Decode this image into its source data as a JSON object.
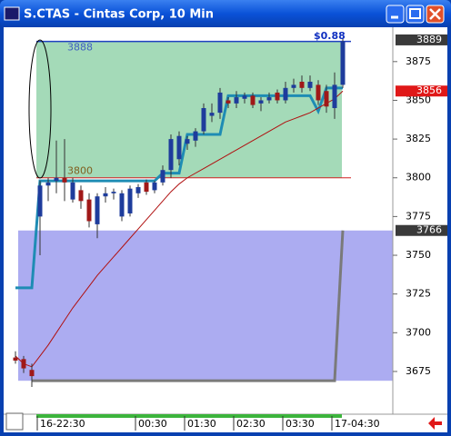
{
  "window_title": "S.CTAS - Cintas Corp, 10 Min",
  "chart_data": {
    "type": "candlestick",
    "categories": [
      null,
      null,
      null,
      "16-22:30",
      null,
      null,
      null,
      null,
      null,
      null,
      null,
      null,
      null,
      null,
      null,
      "00:30",
      null,
      null,
      null,
      null,
      null,
      "01:30",
      null,
      null,
      null,
      null,
      null,
      "02:30",
      null,
      null,
      null,
      null,
      null,
      "03:30",
      null,
      null,
      null,
      null,
      null,
      "17-04:30",
      null
    ],
    "open": [
      3684,
      3683,
      3676,
      3775,
      3795,
      3798,
      3800,
      3786,
      3792,
      3786,
      3770,
      3788,
      3790,
      3775,
      3777,
      3790,
      3797,
      3792,
      3797,
      3805,
      3812,
      3822,
      3824,
      3830,
      3840,
      3842,
      3850,
      3848,
      3851,
      3853,
      3848,
      3850,
      3855,
      3850,
      3858,
      3862,
      3858,
      3860,
      3856,
      3845,
      3860
    ],
    "high": [
      3688,
      3685,
      3680,
      3798,
      3800,
      3824,
      3825,
      3800,
      3795,
      3790,
      3790,
      3794,
      3793,
      3792,
      3795,
      3796,
      3799,
      3798,
      3808,
      3828,
      3830,
      3827,
      3832,
      3848,
      3848,
      3858,
      3852,
      3856,
      3855,
      3855,
      3852,
      3855,
      3857,
      3862,
      3864,
      3866,
      3866,
      3863,
      3860,
      3868,
      3890
    ],
    "low": [
      3680,
      3674,
      3665,
      3750,
      3785,
      3790,
      3785,
      3784,
      3780,
      3768,
      3761,
      3784,
      3786,
      3772,
      3775,
      3787,
      3789,
      3790,
      3795,
      3800,
      3808,
      3818,
      3820,
      3828,
      3836,
      3838,
      3845,
      3845,
      3848,
      3845,
      3843,
      3848,
      3848,
      3848,
      3855,
      3855,
      3856,
      3847,
      3842,
      3838,
      3858
    ],
    "close": [
      3682,
      3677,
      3672,
      3795,
      3797,
      3800,
      3797,
      3797,
      3785,
      3772,
      3788,
      3790,
      3791,
      3790,
      3793,
      3794,
      3791,
      3797,
      3805,
      3825,
      3827,
      3825,
      3830,
      3845,
      3842,
      3855,
      3848,
      3852,
      3853,
      3847,
      3850,
      3852,
      3850,
      3858,
      3860,
      3858,
      3862,
      3850,
      3846,
      3860,
      3888
    ],
    "up_color": "#1e3c9c",
    "down_color": "#a01818",
    "series": [
      {
        "color": "#1e8cb4",
        "values": [
          3729,
          3729,
          3729,
          3798,
          3798,
          3798,
          3798,
          3798,
          3798,
          3798,
          3798,
          3798,
          3798,
          3798,
          3798,
          3798,
          3798,
          3798,
          3803,
          3803,
          3803,
          3828,
          3828,
          3828,
          3828,
          3828,
          3853,
          3853,
          3853,
          3853,
          3853,
          3853,
          3853,
          3853,
          3853,
          3853,
          3853,
          3843,
          3858,
          3858,
          3858
        ]
      },
      {
        "color": "#b01010",
        "values": [
          3685,
          3680,
          3678,
          3685,
          3692,
          3700,
          3708,
          3716,
          3723,
          3730,
          3737,
          3743,
          3749,
          3755,
          3761,
          3767,
          3773,
          3779,
          3785,
          3791,
          3796,
          3800,
          3803,
          3806,
          3809,
          3812,
          3815,
          3818,
          3821,
          3824,
          3827,
          3830,
          3833,
          3836,
          3838,
          3840,
          3842,
          3845,
          3848,
          3851,
          3856
        ]
      },
      {
        "color": "#7a7a7a",
        "values": [
          null,
          null,
          3669,
          3669,
          3669,
          3669,
          3669,
          3669,
          3669,
          3669,
          3669,
          3669,
          3669,
          3669,
          3669,
          3669,
          3669,
          3669,
          3669,
          3669,
          3669,
          3669,
          3669,
          3669,
          3669,
          3669,
          3669,
          3669,
          3669,
          3669,
          3669,
          3669,
          3669,
          3669,
          3669,
          3669,
          3669,
          3669,
          3669,
          3669,
          3766
        ]
      }
    ],
    "zones": [
      {
        "low": 3800,
        "high": 3888,
        "color": "#9fd8b4"
      },
      {
        "low": 3669,
        "high": 3766,
        "color": "#a8a8f0"
      }
    ],
    "change_label": "$0.88",
    "price_markers": [
      {
        "value": 3889,
        "color": "#3a3a3a"
      },
      {
        "value": 3856,
        "color": "#e01818"
      },
      {
        "value": 3766,
        "color": "#3a3a3a"
      }
    ],
    "ylim": [
      3648,
      3896
    ],
    "yticks": [
      3675,
      3700,
      3725,
      3750,
      3775,
      3800,
      3825,
      3850,
      3875
    ],
    "grid": false
  }
}
